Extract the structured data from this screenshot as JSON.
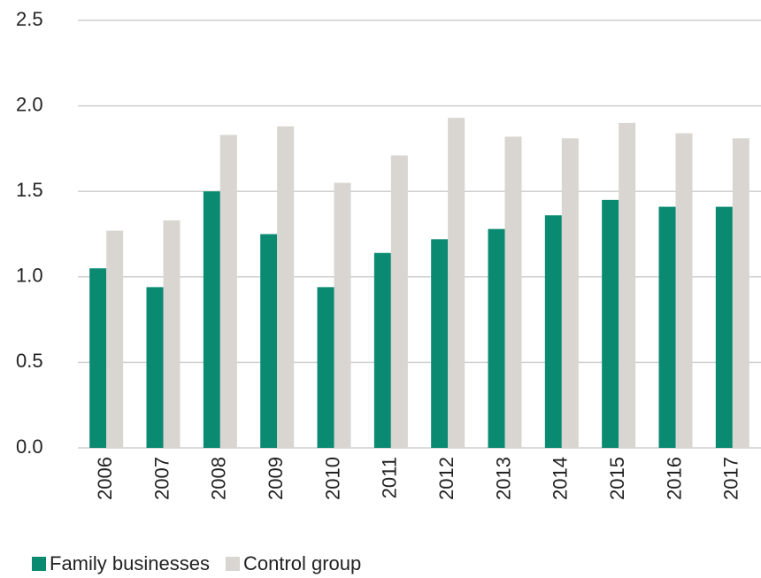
{
  "chart_data": {
    "type": "bar",
    "categories": [
      "2006",
      "2007",
      "2008",
      "2009",
      "2010",
      "2011",
      "2012",
      "2013",
      "2014",
      "2015",
      "2016",
      "2017"
    ],
    "series": [
      {
        "name": "Family businesses",
        "color": "#0b8a72",
        "values": [
          1.05,
          0.94,
          1.5,
          1.25,
          0.94,
          1.14,
          1.22,
          1.28,
          1.36,
          1.45,
          1.41,
          1.41
        ]
      },
      {
        "name": "Control group",
        "color": "#d9d5d0",
        "values": [
          1.27,
          1.33,
          1.83,
          1.88,
          1.55,
          1.71,
          1.93,
          1.82,
          1.81,
          1.9,
          1.84,
          1.81
        ]
      }
    ],
    "ylim": [
      0,
      2.5
    ],
    "yticks": [
      {
        "value": 0,
        "label": "0.0"
      },
      0.5,
      {
        "value": 1,
        "label": "1.0"
      },
      1.5,
      {
        "value": 2,
        "label": "2.0"
      },
      2.5
    ],
    "grid": true,
    "legend": "bottom-left"
  }
}
